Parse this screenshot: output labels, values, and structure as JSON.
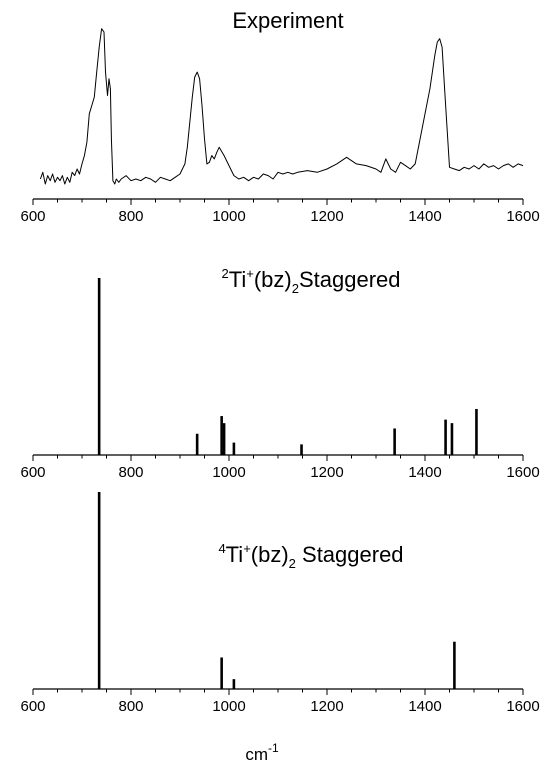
{
  "figure": {
    "xlabel": "cm",
    "xlabel_sup": "-1"
  },
  "chart_data": [
    {
      "type": "line",
      "title": "Experiment",
      "xlim": [
        600,
        1600
      ],
      "xticks": [
        "600",
        "800",
        "1000",
        "1200",
        "1400",
        "1600"
      ],
      "series": [
        {
          "x": [
            615,
            620,
            625,
            630,
            635,
            640,
            645,
            650,
            655,
            660,
            665,
            670,
            675,
            680,
            685,
            690,
            695,
            700,
            705,
            710,
            715,
            720,
            725,
            730,
            735,
            740,
            745,
            748,
            752,
            755,
            758,
            760,
            763,
            767,
            770,
            775,
            780,
            790,
            800,
            810,
            820,
            830,
            840,
            850,
            860,
            870,
            880,
            890,
            900,
            905,
            910,
            915,
            920,
            925,
            930,
            935,
            940,
            945,
            950,
            955,
            960,
            965,
            970,
            975,
            980,
            990,
            1000,
            1010,
            1020,
            1030,
            1040,
            1050,
            1060,
            1070,
            1080,
            1090,
            1100,
            1110,
            1120,
            1130,
            1140,
            1160,
            1180,
            1200,
            1220,
            1240,
            1260,
            1280,
            1300,
            1310,
            1320,
            1330,
            1340,
            1350,
            1360,
            1370,
            1380,
            1390,
            1400,
            1410,
            1420,
            1425,
            1430,
            1435,
            1440,
            1450,
            1460,
            1470,
            1480,
            1490,
            1500,
            1510,
            1520,
            1530,
            1540,
            1550,
            1560,
            1570,
            1580,
            1590,
            1600
          ],
          "y": [
            0.06,
            0.1,
            0.03,
            0.08,
            0.05,
            0.09,
            0.04,
            0.07,
            0.05,
            0.08,
            0.03,
            0.07,
            0.04,
            0.1,
            0.08,
            0.12,
            0.09,
            0.15,
            0.2,
            0.28,
            0.45,
            0.5,
            0.55,
            0.7,
            0.85,
            0.96,
            0.94,
            0.7,
            0.56,
            0.66,
            0.6,
            0.3,
            0.05,
            0.03,
            0.06,
            0.04,
            0.06,
            0.08,
            0.05,
            0.06,
            0.05,
            0.07,
            0.06,
            0.04,
            0.07,
            0.06,
            0.05,
            0.07,
            0.09,
            0.12,
            0.15,
            0.25,
            0.4,
            0.55,
            0.67,
            0.7,
            0.66,
            0.5,
            0.3,
            0.15,
            0.16,
            0.2,
            0.18,
            0.22,
            0.25,
            0.2,
            0.14,
            0.08,
            0.06,
            0.07,
            0.05,
            0.07,
            0.06,
            0.09,
            0.08,
            0.06,
            0.1,
            0.09,
            0.1,
            0.09,
            0.1,
            0.11,
            0.1,
            0.12,
            0.15,
            0.19,
            0.15,
            0.14,
            0.12,
            0.1,
            0.18,
            0.12,
            0.1,
            0.16,
            0.14,
            0.12,
            0.15,
            0.3,
            0.45,
            0.6,
            0.8,
            0.88,
            0.9,
            0.85,
            0.6,
            0.13,
            0.12,
            0.11,
            0.13,
            0.12,
            0.14,
            0.12,
            0.15,
            0.13,
            0.14,
            0.12,
            0.14,
            0.15,
            0.13,
            0.15,
            0.14
          ]
        }
      ]
    },
    {
      "type": "bar",
      "title_sup": "2",
      "title_main": "Ti",
      "title_plus": "+",
      "title_paren": "(bz)",
      "title_sub": "2",
      "title_tail": "Staggered",
      "xlim": [
        600,
        1600
      ],
      "xticks": [
        "600",
        "800",
        "1000",
        "1200",
        "1400",
        "1600"
      ],
      "x": [
        735,
        935,
        985,
        990,
        1010,
        1148,
        1338,
        1442,
        1455,
        1505
      ],
      "values": [
        1.0,
        0.12,
        0.22,
        0.18,
        0.07,
        0.06,
        0.15,
        0.2,
        0.18,
        0.26
      ]
    },
    {
      "type": "bar",
      "title_sup": "4",
      "title_main": "Ti",
      "title_plus": "+",
      "title_paren": "(bz)",
      "title_sub": "2",
      "title_tail": " Staggered",
      "xlim": [
        600,
        1600
      ],
      "xticks": [
        "600",
        "800",
        "1000",
        "1200",
        "1400",
        "1600"
      ],
      "x": [
        735,
        985,
        1010,
        1460
      ],
      "values": [
        1.0,
        0.16,
        0.05,
        0.24
      ]
    }
  ]
}
